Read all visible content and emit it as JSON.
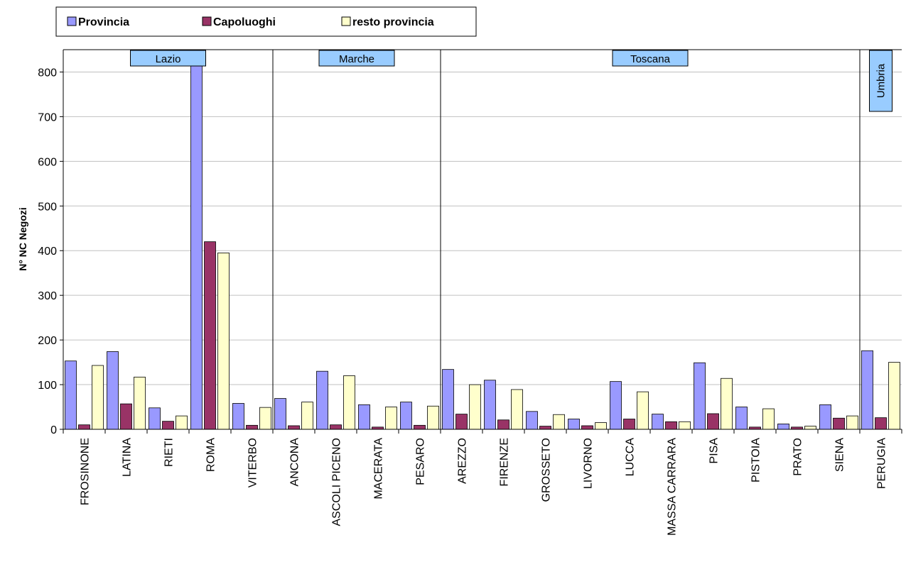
{
  "chart_data": {
    "type": "bar",
    "ylabel": "N° NC Negozi",
    "ylim": [
      0,
      850
    ],
    "yticks": [
      0,
      100,
      200,
      300,
      400,
      500,
      600,
      700,
      800
    ],
    "grid": true,
    "legend_position": "top-left",
    "categories": [
      "FROSINONE",
      "LATINA",
      "RIETI",
      "ROMA",
      "VITERBO",
      "ANCONA",
      "ASCOLI PICENO",
      "MACERATA",
      "PESARO",
      "AREZZO",
      "FIRENZE",
      "GROSSETO",
      "LIVORNO",
      "LUCCA",
      "MASSA CARRARA",
      "PISA",
      "PISTOIA",
      "PRATO",
      "SIENA",
      "PERUGIA"
    ],
    "series": [
      {
        "name": "Provincia",
        "color": "#9999ff",
        "values": [
          153,
          174,
          48,
          815,
          58,
          69,
          130,
          55,
          61,
          134,
          110,
          40,
          23,
          107,
          34,
          149,
          50,
          12,
          55,
          176
        ]
      },
      {
        "name": "Capoluoghi",
        "color": "#993366",
        "values": [
          10,
          57,
          18,
          420,
          9,
          8,
          10,
          5,
          9,
          34,
          21,
          7,
          8,
          23,
          17,
          35,
          5,
          5,
          25,
          26
        ]
      },
      {
        "name": "resto provincia",
        "color": "#ffffcc",
        "values": [
          143,
          117,
          30,
          395,
          49,
          61,
          120,
          50,
          52,
          100,
          89,
          33,
          15,
          84,
          17,
          114,
          46,
          7,
          30,
          150
        ]
      }
    ],
    "regions": [
      {
        "label": "Lazio",
        "start": 0,
        "end": 4
      },
      {
        "label": "Marche",
        "start": 5,
        "end": 8
      },
      {
        "label": "Toscana",
        "start": 9,
        "end": 18
      },
      {
        "label": "Umbria",
        "start": 19,
        "end": 19,
        "vertical": true
      }
    ]
  }
}
